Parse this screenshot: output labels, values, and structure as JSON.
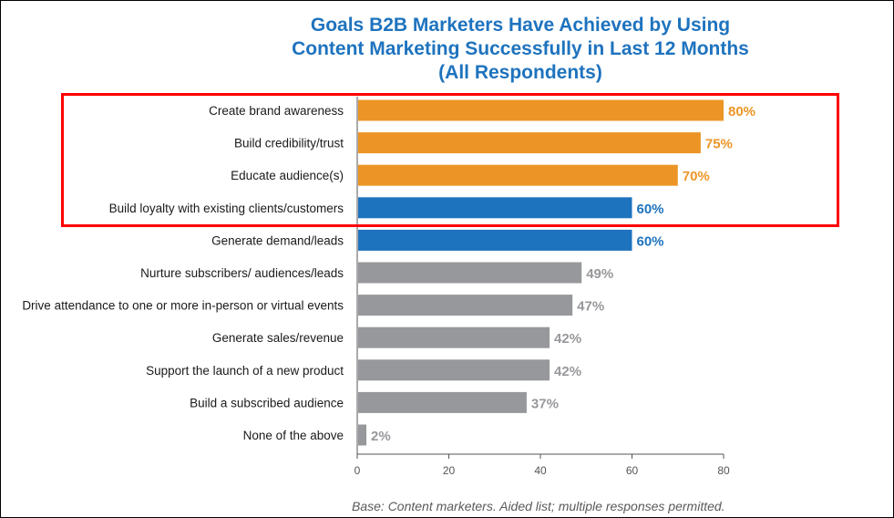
{
  "chart_data": {
    "type": "bar",
    "orientation": "horizontal",
    "title": [
      "Goals B2B Marketers Have Achieved by Using",
      "Content Marketing Successfully in Last 12 Months",
      "(All Respondents)"
    ],
    "categories": [
      "Create brand awareness",
      "Build credibility/trust",
      "Educate audience(s)",
      "Build loyalty with existing clients/customers",
      "Generate demand/leads",
      "Nurture subscribers/ audiences/leads",
      "Drive attendance to one or more in-person or virtual events",
      "Generate sales/revenue",
      "Support the launch of a new product",
      "Build a subscribed audience",
      "None of the above"
    ],
    "values": [
      80,
      75,
      70,
      60,
      60,
      49,
      47,
      42,
      42,
      37,
      2
    ],
    "value_labels": [
      "80%",
      "75%",
      "70%",
      "60%",
      "60%",
      "49%",
      "47%",
      "42%",
      "42%",
      "37%",
      "2%"
    ],
    "bar_colors": [
      "#ec9526",
      "#ec9526",
      "#ec9526",
      "#1e73be",
      "#1e73be",
      "#97989b",
      "#97989b",
      "#97989b",
      "#97989b",
      "#97989b",
      "#97989b"
    ],
    "label_colors": [
      "#ec9526",
      "#ec9526",
      "#ec9526",
      "#1e73be",
      "#1e73be",
      "#97989b",
      "#97989b",
      "#97989b",
      "#97989b",
      "#97989b",
      "#97989b"
    ],
    "xlim": [
      0,
      80
    ],
    "xticks": [
      0,
      20,
      40,
      60,
      80
    ],
    "xlabel": "",
    "ylabel": "",
    "grid": false,
    "footnote": "Base: Content marketers. Aided list; multiple responses permitted."
  },
  "colors": {
    "title": "#1e73be",
    "highlight_box": "#ff0000",
    "category_text": "#1a1a1a",
    "tick_text": "#555555",
    "axis": "#555555"
  }
}
